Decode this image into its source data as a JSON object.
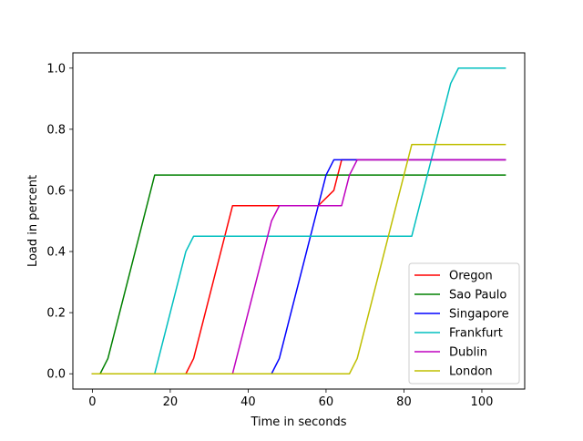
{
  "chart_data": {
    "type": "line",
    "title": "",
    "xlabel": "Time in seconds",
    "ylabel": "Load in percent",
    "xlim": [
      -5,
      111
    ],
    "ylim": [
      -0.05,
      1.05
    ],
    "xticks": [
      0,
      20,
      40,
      60,
      80,
      100
    ],
    "xtick_labels": [
      "0",
      "20",
      "40",
      "60",
      "80",
      "100"
    ],
    "yticks": [
      0.0,
      0.2,
      0.4,
      0.6,
      0.8,
      1.0
    ],
    "ytick_labels": [
      "0.0",
      "0.2",
      "0.4",
      "0.6",
      "0.8",
      "1.0"
    ],
    "grid": false,
    "legend_position": "lower-right",
    "series": [
      {
        "name": "Oregon",
        "color": "#ff0000",
        "points": [
          [
            0,
            0
          ],
          [
            24,
            0
          ],
          [
            26,
            0.05
          ],
          [
            36,
            0.55
          ],
          [
            58,
            0.55
          ],
          [
            62,
            0.6
          ],
          [
            64,
            0.7
          ],
          [
            106,
            0.7
          ]
        ]
      },
      {
        "name": "Sao Paulo",
        "color": "#008000",
        "points": [
          [
            0,
            0
          ],
          [
            2,
            0
          ],
          [
            4,
            0.05
          ],
          [
            16,
            0.65
          ],
          [
            106,
            0.65
          ]
        ]
      },
      {
        "name": "Singapore",
        "color": "#0000ff",
        "points": [
          [
            0,
            0
          ],
          [
            46,
            0
          ],
          [
            48,
            0.05
          ],
          [
            60,
            0.65
          ],
          [
            62,
            0.7
          ],
          [
            106,
            0.7
          ]
        ]
      },
      {
        "name": "Frankfurt",
        "color": "#00bfbf",
        "points": [
          [
            0,
            0
          ],
          [
            16,
            0
          ],
          [
            24,
            0.4
          ],
          [
            26,
            0.45
          ],
          [
            82,
            0.45
          ],
          [
            92,
            0.95
          ],
          [
            94,
            1.0
          ],
          [
            106,
            1.0
          ]
        ]
      },
      {
        "name": "Dublin",
        "color": "#bf00bf",
        "points": [
          [
            0,
            0
          ],
          [
            36,
            0
          ],
          [
            46,
            0.5
          ],
          [
            48,
            0.55
          ],
          [
            64,
            0.55
          ],
          [
            66,
            0.65
          ],
          [
            68,
            0.7
          ],
          [
            106,
            0.7
          ]
        ]
      },
      {
        "name": "London",
        "color": "#bfbf00",
        "points": [
          [
            0,
            0
          ],
          [
            66,
            0
          ],
          [
            68,
            0.05
          ],
          [
            82,
            0.75
          ],
          [
            106,
            0.75
          ]
        ]
      }
    ]
  }
}
